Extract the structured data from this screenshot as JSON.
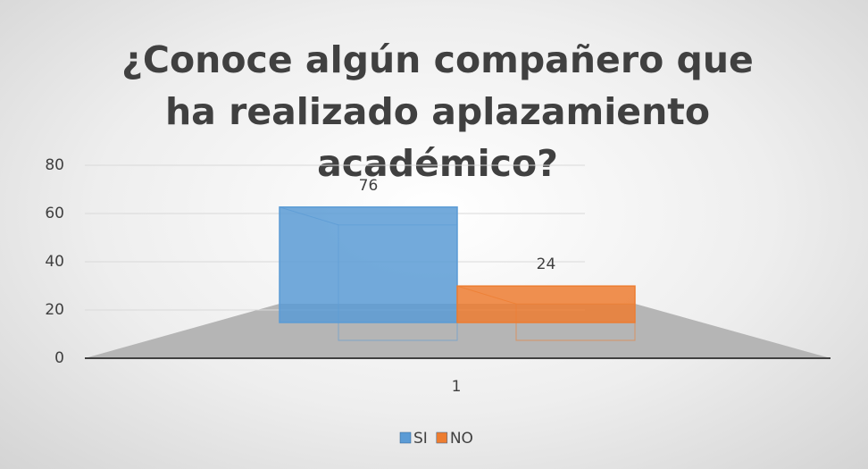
{
  "chart_data": {
    "type": "bar3d",
    "title": "¿Conoce algún compañero que ha realizado aplazamiento académico?",
    "categories": [
      "1"
    ],
    "series": [
      {
        "name": "SI",
        "color": "#5b9bd5",
        "values": [
          76
        ]
      },
      {
        "name": "NO",
        "color": "#ed7d31",
        "values": [
          24
        ]
      }
    ],
    "ylim": [
      0,
      80
    ],
    "yticks": [
      0,
      20,
      40,
      60,
      80
    ],
    "grid": true,
    "legend": "bottom"
  }
}
